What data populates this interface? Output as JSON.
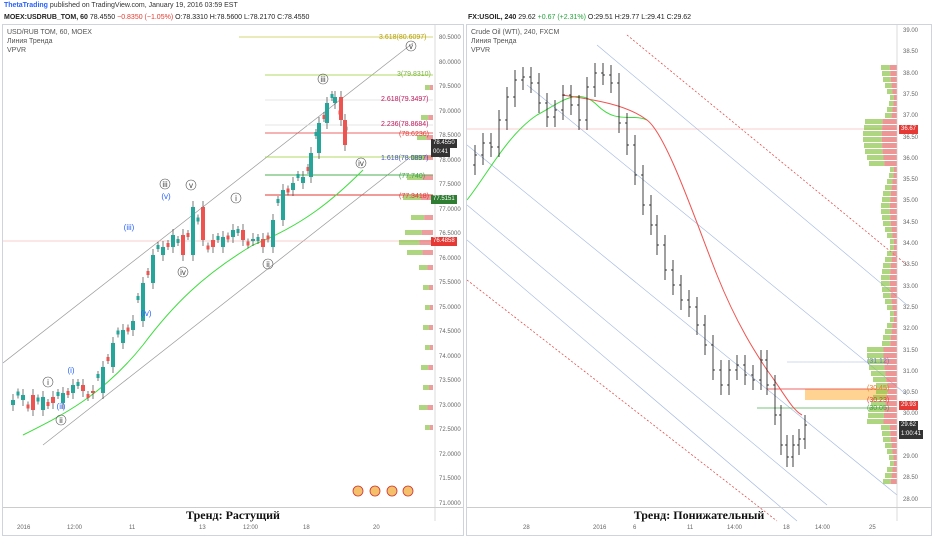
{
  "header": {
    "brand": "ThetaTrading",
    "published": "published on TradingView.com, January 19, 2016 03:59 EST"
  },
  "left_chart": {
    "symbol": "MOEX:USDRUB_TOM, 60",
    "price": "78.4550",
    "change": "−0.8350 (−1.05%)",
    "O": "O:78.3310",
    "H": "H:78.5600",
    "L": "L:78.2170",
    "C": "C:78.4550",
    "title_line": "USD/RUB TOM, 60, MOEX",
    "study1": "Линия Тренда",
    "study2": "VPVR",
    "caption": "Тренд: Растущий",
    "y_ticks": [
      "80.5000",
      "80.0000",
      "79.5000",
      "79.0000",
      "78.5000",
      "78.0000",
      "77.5000",
      "77.0000",
      "76.5000",
      "76.0000",
      "75.5000",
      "75.0000",
      "74.5000",
      "74.0000",
      "73.5000",
      "73.0000",
      "72.5000",
      "72.0000",
      "71.5000",
      "71.0000"
    ],
    "x_ticks": [
      "2016",
      "12:00",
      "11",
      "13",
      "12:00",
      "18",
      "20"
    ],
    "fib_labels": [
      "3.618(80.6097)",
      "3(79.8310)",
      "2.618(79.3497)",
      "2.236(78.8684)",
      "(78.6236)",
      "1.618(78.0897)",
      "(77.740)",
      "(77.3418)"
    ],
    "wave_labels": [
      "i",
      "ii",
      "iii",
      "iv",
      "v",
      "(i)",
      "(ii)",
      "(iii)",
      "(iv)",
      "(v)",
      "iii",
      "iv",
      "v",
      "i",
      "ii",
      "iii",
      "iv",
      "v"
    ],
    "price_tags": {
      "last": "78.4550",
      "timer": "00:41",
      "green": "77.5151",
      "red": "76.4858"
    }
  },
  "right_chart": {
    "symbol": "FX:USOIL, 240",
    "price": "29.62",
    "change": "+0.67 (+2.31%)",
    "O": "O:29.51",
    "H": "H:29.77",
    "L": "L:29.41",
    "C": "C:29.62",
    "title_line": "Crude Oil (WTI), 240, FXCM",
    "study1": "Линия Тренда",
    "study2": "VPVR",
    "caption": "Тренд: Понижательный",
    "y_ticks": [
      "39.00",
      "38.50",
      "38.00",
      "37.50",
      "37.00",
      "36.50",
      "36.00",
      "35.50",
      "35.00",
      "34.50",
      "34.00",
      "33.50",
      "33.00",
      "32.50",
      "32.00",
      "31.50",
      "31.00",
      "30.50",
      "30.00",
      "29.50",
      "29.00",
      "28.50",
      "28.00"
    ],
    "x_ticks": [
      "28",
      "2016",
      "6",
      "11",
      "14:00",
      "18",
      "14:00",
      "25"
    ],
    "levels": [
      "(31.12)",
      "(30.45)",
      "(30.23)",
      "(30.05)"
    ],
    "price_tags": {
      "red": "36.67",
      "red2": "29.93",
      "last": "29.62",
      "timer": "1:00:41"
    }
  },
  "colors": {
    "red": "#e53935",
    "green": "#4caf50",
    "blue": "#2962ff",
    "ma_green": "#3ddc3d",
    "ma_red": "#ef5350"
  }
}
